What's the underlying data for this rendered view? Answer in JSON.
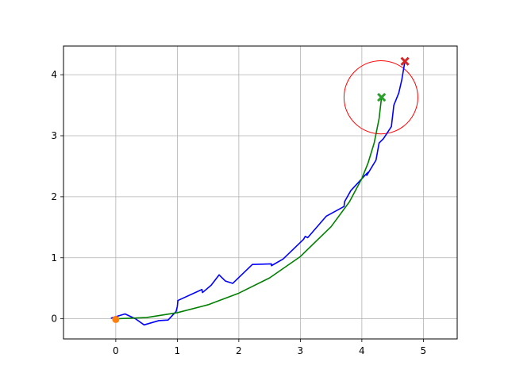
{
  "chart_data": {
    "type": "line",
    "title": "",
    "xlabel": "",
    "ylabel": "",
    "xlim": [
      -0.85,
      5.55
    ],
    "ylim": [
      -0.33,
      4.47
    ],
    "grid": true,
    "x_ticks": [
      0,
      1,
      2,
      3,
      4,
      5
    ],
    "y_ticks": [
      0,
      1,
      2,
      3,
      4
    ],
    "x_tick_labels": [
      "0",
      "1",
      "2",
      "3",
      "4",
      "5"
    ],
    "y_tick_labels": [
      "0",
      "1",
      "2",
      "3",
      "4"
    ],
    "colors": {
      "trajectory": "#0000ff",
      "curve": "#008000",
      "circle": "#ff0000",
      "start_marker": "#ff7f0e",
      "green_marker": "#2ca02c",
      "red_marker": "#d62728",
      "grid": "#b0b0b0"
    },
    "series": [
      {
        "type": "line",
        "color": "#0000ff",
        "points": [
          [
            -0.08,
            0.01
          ],
          [
            0.15,
            0.08
          ],
          [
            0.32,
            0.0
          ],
          [
            0.46,
            -0.1
          ],
          [
            0.7,
            -0.03
          ],
          [
            0.85,
            -0.02
          ],
          [
            0.98,
            0.12
          ],
          [
            1.0,
            0.2
          ],
          [
            1.01,
            0.3
          ],
          [
            1.4,
            0.48
          ],
          [
            1.41,
            0.43
          ],
          [
            1.55,
            0.55
          ],
          [
            1.68,
            0.72
          ],
          [
            1.78,
            0.62
          ],
          [
            1.9,
            0.58
          ],
          [
            2.22,
            0.89
          ],
          [
            2.53,
            0.9
          ],
          [
            2.53,
            0.87
          ],
          [
            2.72,
            0.98
          ],
          [
            3.05,
            1.3
          ],
          [
            3.08,
            1.35
          ],
          [
            3.12,
            1.33
          ],
          [
            3.42,
            1.68
          ],
          [
            3.71,
            1.84
          ],
          [
            3.72,
            1.92
          ],
          [
            3.82,
            2.1
          ],
          [
            4.05,
            2.35
          ],
          [
            4.1,
            2.4
          ],
          [
            4.08,
            2.35
          ],
          [
            4.23,
            2.6
          ],
          [
            4.28,
            2.88
          ],
          [
            4.35,
            2.95
          ],
          [
            4.48,
            3.15
          ],
          [
            4.52,
            3.5
          ],
          [
            4.6,
            3.7
          ],
          [
            4.65,
            3.92
          ],
          [
            4.7,
            4.22
          ]
        ]
      },
      {
        "type": "curve",
        "color": "#008000",
        "points": [
          [
            0.0,
            0.0
          ],
          [
            0.5,
            0.02
          ],
          [
            1.0,
            0.1
          ],
          [
            1.5,
            0.23
          ],
          [
            2.0,
            0.42
          ],
          [
            2.5,
            0.67
          ],
          [
            3.0,
            1.02
          ],
          [
            3.5,
            1.51
          ],
          [
            3.8,
            1.92
          ],
          [
            4.0,
            2.3
          ],
          [
            4.1,
            2.55
          ],
          [
            4.2,
            2.88
          ],
          [
            4.28,
            3.28
          ],
          [
            4.32,
            3.63
          ]
        ]
      }
    ],
    "markers": [
      {
        "shape": "circle",
        "color": "#ff7f0e",
        "x": 0.0,
        "y": -0.01
      },
      {
        "shape": "x",
        "color": "#2ca02c",
        "x": 4.32,
        "y": 3.63
      },
      {
        "shape": "x",
        "color": "#d62728",
        "x": 4.7,
        "y": 4.22
      }
    ],
    "circle": {
      "center": [
        4.31,
        3.63
      ],
      "radius": 0.6,
      "color": "#ff0000"
    }
  }
}
